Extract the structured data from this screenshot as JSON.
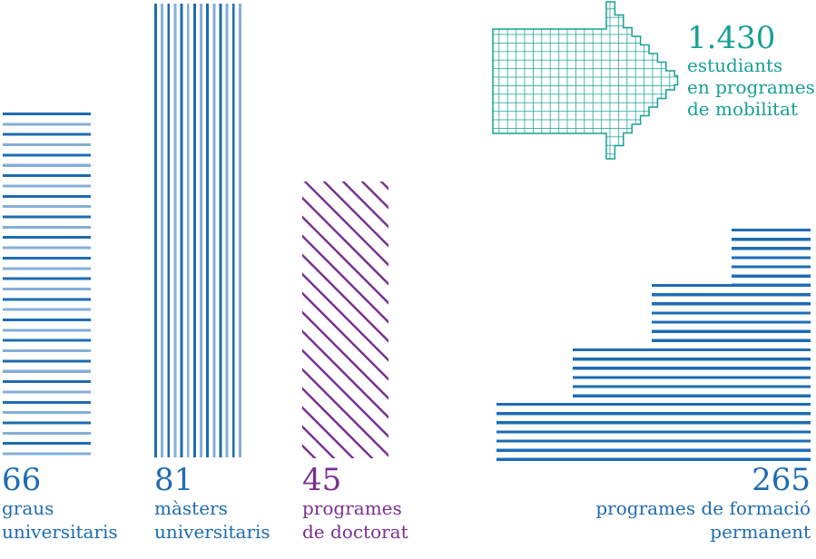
{
  "palette": {
    "blue": "#1e6cb2",
    "blue_light": "#85aed8",
    "purple": "#7a2f91",
    "teal": "#17a094"
  },
  "figures": [
    {
      "id": "graus",
      "number": "66",
      "lines": [
        "graus",
        "universitaris"
      ]
    },
    {
      "id": "masters",
      "number": "81",
      "lines": [
        "màsters",
        "universitaris"
      ]
    },
    {
      "id": "doctorat",
      "number": "45",
      "lines": [
        "programes",
        "de doctorat"
      ]
    },
    {
      "id": "mobilitat",
      "number": "1.430",
      "lines": [
        "estudiants",
        "en programes",
        "de mobilitat"
      ]
    },
    {
      "id": "formacio",
      "number": "265",
      "lines": [
        "programes de formació",
        "permanent"
      ]
    }
  ],
  "chart_data": {
    "type": "bar",
    "title": "",
    "categories": [
      "graus universitaris",
      "màsters universitaris",
      "programes de doctorat",
      "estudiants en programes de mobilitat",
      "programes de formació permanent"
    ],
    "values": [
      66,
      81,
      45,
      1430,
      265
    ],
    "display_values": [
      "66",
      "81",
      "45",
      "1.430",
      "265"
    ],
    "series_colors": [
      "#1e6cb2",
      "#1e6cb2",
      "#7a2f91",
      "#17a094",
      "#1e6cb2"
    ],
    "pictogram_styles": [
      "horizontal-stripe bar",
      "vertical-stripe bar",
      "diagonal-stripe bar",
      "crosshatch right-arrow",
      "horizontal-stripe staircase"
    ],
    "axes": "none",
    "grid": "off",
    "legend": "none"
  }
}
